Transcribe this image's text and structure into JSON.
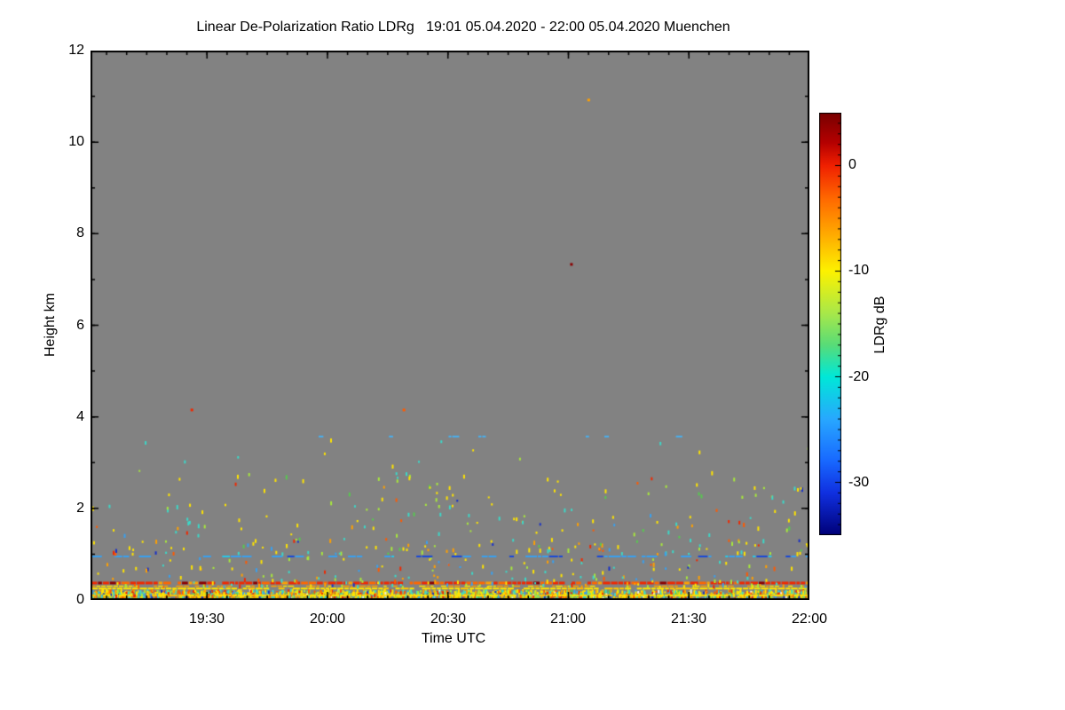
{
  "chart_data": {
    "type": "heatmap",
    "title": "Linear De-Polarization Ratio LDRg   19:01 05.04.2020 - 22:00 05.04.2020 Muenchen",
    "xlabel": "Time UTC",
    "ylabel": "Height km",
    "station": "Muenchen",
    "time_start": "19:01 05.04.2020",
    "time_end": "22:00 05.04.2020",
    "x_range_minutes": [
      1141,
      1320
    ],
    "x_tick_labels": [
      "19:30",
      "20:00",
      "20:30",
      "21:00",
      "21:30",
      "22:00"
    ],
    "x_major_tick_minutes": [
      1170,
      1200,
      1230,
      1260,
      1290,
      1320
    ],
    "x_minor_step_minutes": 5,
    "ylim": [
      0,
      12
    ],
    "y_tick_labels": [
      "0",
      "2",
      "4",
      "6",
      "8",
      "10",
      "12"
    ],
    "y_major_tick_values": [
      0,
      2,
      4,
      6,
      8,
      10,
      12
    ],
    "y_minor_step_km": 1,
    "grid": false,
    "background_color": "#828282",
    "axis_color": "#000000",
    "colorbar": {
      "label": "LDRg dB",
      "tick_labels": [
        "0",
        "-10",
        "-20",
        "-30"
      ],
      "tick_values": [
        0,
        -10,
        -20,
        -30
      ],
      "minor_step_db": 1,
      "value_range_db": [
        5,
        -35
      ],
      "gradient_stops": [
        [
          0.0,
          "#780000"
        ],
        [
          0.07,
          "#b40000"
        ],
        [
          0.125,
          "#f02000"
        ],
        [
          0.2,
          "#ff6600"
        ],
        [
          0.3,
          "#ffb400"
        ],
        [
          0.375,
          "#fdf200"
        ],
        [
          0.475,
          "#a8e84a"
        ],
        [
          0.55,
          "#58dc78"
        ],
        [
          0.625,
          "#00e8d8"
        ],
        [
          0.725,
          "#28a8ff"
        ],
        [
          0.825,
          "#1868ff"
        ],
        [
          0.9,
          "#1030e0"
        ],
        [
          1.0,
          "#000078"
        ]
      ]
    },
    "features": [
      {
        "kind": "speckle_layer",
        "name": "surface-dense-band",
        "h_min": 0.0,
        "h_max": 0.2,
        "count": 2000,
        "falloff": 1,
        "palette": [
          [
            "#ffe400",
            0.3
          ],
          [
            "#ffa000",
            0.14
          ],
          [
            "#ff5a00",
            0.07
          ],
          [
            "#f02800",
            0.06
          ],
          [
            "#3cd8c8",
            0.16
          ],
          [
            "#a8e83c",
            0.12
          ],
          [
            "#58c850",
            0.05
          ],
          [
            "#38a0f0",
            0.05
          ],
          [
            "#1830c8",
            0.03
          ],
          [
            "#f2f2e6",
            0.02
          ]
        ]
      },
      {
        "kind": "hline",
        "name": "near-surface-yellow-line",
        "h": 0.1,
        "thickness": 2,
        "coverage": 0.85,
        "seg_len": [
          4,
          10
        ],
        "palette": [
          [
            "#ffe400",
            0.85
          ],
          [
            "#ffc800",
            0.15
          ]
        ]
      },
      {
        "kind": "hline",
        "name": "yellow-layer-line",
        "h": 0.25,
        "thickness": 2,
        "coverage": 0.93,
        "seg_len": [
          4,
          10
        ],
        "palette": [
          [
            "#ffe400",
            0.9
          ],
          [
            "#ffc800",
            0.1
          ]
        ]
      },
      {
        "kind": "hline",
        "name": "orange-layer-line",
        "h": 0.3,
        "thickness": 1.5,
        "coverage": 0.6,
        "seg_len": [
          3,
          8
        ],
        "palette": [
          [
            "#ffa000",
            0.6
          ],
          [
            "#ffe400",
            0.4
          ]
        ]
      },
      {
        "kind": "hline",
        "name": "red-layer-line",
        "h": 0.37,
        "thickness": 3,
        "coverage": 0.97,
        "seg_len": [
          3,
          9
        ],
        "palette": [
          [
            "#f02800",
            0.62
          ],
          [
            "#ff6600",
            0.22
          ],
          [
            "#ffa000",
            0.08
          ],
          [
            "#8c0000",
            0.08
          ]
        ]
      },
      {
        "kind": "speckle_layer",
        "name": "lower-speckles",
        "h_min": 0.28,
        "h_max": 0.92,
        "count": 190,
        "falloff": 1.6,
        "palette": [
          [
            "#ffe400",
            0.3
          ],
          [
            "#ffa000",
            0.12
          ],
          [
            "#3cd8c8",
            0.18
          ],
          [
            "#a8e83c",
            0.16
          ],
          [
            "#f02800",
            0.05
          ],
          [
            "#38a0f0",
            0.1
          ],
          [
            "#1830c8",
            0.04
          ],
          [
            "#ff5a00",
            0.05
          ]
        ]
      },
      {
        "kind": "hline",
        "name": "blue-layer-line",
        "h": 0.95,
        "thickness": 2,
        "coverage": 0.52,
        "seg_len": [
          3,
          14
        ],
        "palette": [
          [
            "#38a0f0",
            0.72
          ],
          [
            "#28c8e8",
            0.1
          ],
          [
            "#1848d8",
            0.18
          ]
        ]
      },
      {
        "kind": "speckle_layer",
        "name": "mid-speckles",
        "h_min": 1.0,
        "h_max": 2.7,
        "count": 250,
        "falloff": 1.7,
        "palette": [
          [
            "#ffe400",
            0.34
          ],
          [
            "#a8e83c",
            0.15
          ],
          [
            "#3cd8c8",
            0.17
          ],
          [
            "#ffa000",
            0.12
          ],
          [
            "#58c850",
            0.06
          ],
          [
            "#38a0f0",
            0.06
          ],
          [
            "#f02800",
            0.04
          ],
          [
            "#ff5a00",
            0.04
          ],
          [
            "#1830c8",
            0.02
          ]
        ]
      },
      {
        "kind": "speckle_layer",
        "name": "upper-sparse-speckles",
        "h_min": 2.7,
        "h_max": 3.5,
        "count": 18,
        "falloff": 1,
        "palette": [
          [
            "#a8e83c",
            0.4
          ],
          [
            "#3cd8c8",
            0.3
          ],
          [
            "#ffe400",
            0.3
          ]
        ]
      },
      {
        "kind": "hline",
        "name": "high-blue-dashes",
        "h": 3.57,
        "thickness": 2,
        "coverage": 0.1,
        "seg_len": [
          3,
          8
        ],
        "x_start_frac": 0.3,
        "palette": [
          [
            "#48b0f0",
            1.0
          ]
        ]
      },
      {
        "kind": "points",
        "name": "isolated-returns",
        "items": [
          {
            "x_frac": 0.141,
            "h": 4.15,
            "color": "#f02800"
          },
          {
            "x_frac": 0.436,
            "h": 4.15,
            "color": "#ff5a00"
          },
          {
            "x_frac": 0.693,
            "h": 10.92,
            "color": "#ffa000"
          },
          {
            "x_frac": 0.669,
            "h": 7.33,
            "color": "#8c0000"
          }
        ]
      }
    ]
  }
}
